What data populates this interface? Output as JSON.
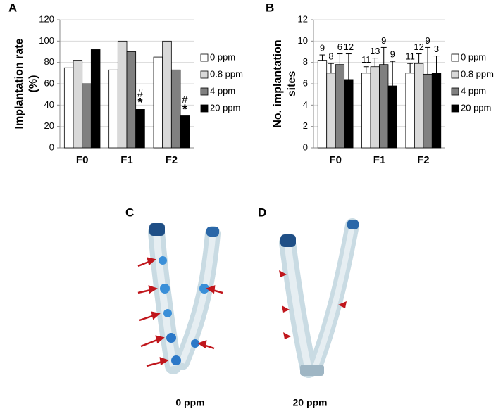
{
  "chart_data": [
    {
      "type": "bar",
      "panel": "A",
      "ylabel": [
        "Implantation rate",
        "(%)"
      ],
      "categories": [
        "F0",
        "F1",
        "F2"
      ],
      "series": [
        {
          "name": "0 ppm",
          "color": "#ffffff",
          "values": [
            75,
            73,
            85
          ]
        },
        {
          "name": "0.8 ppm",
          "color": "#d9d9d9",
          "values": [
            82,
            100,
            100
          ]
        },
        {
          "name": "4 ppm",
          "color": "#808080",
          "values": [
            60,
            90,
            73
          ]
        },
        {
          "name": "20 ppm",
          "color": "#000000",
          "values": [
            92,
            36,
            30
          ],
          "annotations": [
            null,
            [
              "#",
              "*"
            ],
            [
              "#",
              "*"
            ]
          ]
        }
      ],
      "ylim": [
        0,
        120
      ],
      "yticks": [
        0,
        20,
        40,
        60,
        80,
        100,
        120
      ],
      "grid": true,
      "legend": "right"
    },
    {
      "type": "bar",
      "panel": "B",
      "ylabel": [
        "No. implantation",
        "sites"
      ],
      "categories": [
        "F0",
        "F1",
        "F2"
      ],
      "series": [
        {
          "name": "0 ppm",
          "color": "#ffffff",
          "values": [
            8.2,
            7.0,
            7.0
          ],
          "errors": [
            0.5,
            0.6,
            0.9
          ],
          "n": [
            9,
            11,
            11
          ]
        },
        {
          "name": "0.8 ppm",
          "color": "#d9d9d9",
          "values": [
            7.0,
            7.6,
            7.9
          ],
          "errors": [
            0.9,
            0.8,
            0.9
          ],
          "n": [
            8,
            13,
            12
          ]
        },
        {
          "name": "4 ppm",
          "color": "#808080",
          "values": [
            7.8,
            7.8,
            6.9
          ],
          "errors": [
            1.0,
            1.6,
            2.5
          ],
          "n": [
            6,
            9,
            9
          ]
        },
        {
          "name": "20 ppm",
          "color": "#000000",
          "values": [
            6.4,
            5.8,
            7.0
          ],
          "errors": [
            2.4,
            2.3,
            1.6
          ],
          "n": [
            12,
            9,
            3
          ]
        }
      ],
      "ylim": [
        0,
        12
      ],
      "yticks": [
        0,
        2,
        4,
        6,
        8,
        10,
        12
      ],
      "grid": true,
      "legend": "right"
    }
  ],
  "photos": [
    {
      "panel": "C",
      "caption": "0 ppm"
    },
    {
      "panel": "D",
      "caption": "20 ppm"
    }
  ]
}
